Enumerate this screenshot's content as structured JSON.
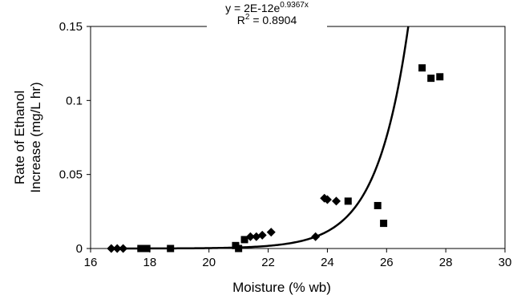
{
  "chart_data": {
    "type": "scatter",
    "title": "",
    "xlabel": "Moisture (% wb)",
    "ylabel_line1": "Rate of Ethanol",
    "ylabel_line2": "Increase (mg/L hr)",
    "xlim": [
      16,
      30
    ],
    "ylim": [
      0,
      0.15
    ],
    "x_ticks": [
      16,
      18,
      20,
      22,
      24,
      26,
      28,
      30
    ],
    "x_tick_labels": [
      "16",
      "18",
      "20",
      "22",
      "24",
      "26",
      "28",
      "30"
    ],
    "y_ticks": [
      0,
      0.05,
      0.1,
      0.15
    ],
    "y_tick_labels": [
      "0",
      "0.05",
      "0.1",
      "0.15"
    ],
    "grid": false,
    "legend": "none",
    "series": [
      {
        "marker": "diamond",
        "points": [
          {
            "x": 16.7,
            "y": 0.0
          },
          {
            "x": 16.9,
            "y": 0.0
          },
          {
            "x": 17.1,
            "y": 0.0
          },
          {
            "x": 21.4,
            "y": 0.008
          },
          {
            "x": 21.6,
            "y": 0.008
          },
          {
            "x": 21.8,
            "y": 0.009
          },
          {
            "x": 22.1,
            "y": 0.011
          },
          {
            "x": 23.6,
            "y": 0.008
          },
          {
            "x": 23.9,
            "y": 0.034
          },
          {
            "x": 24.0,
            "y": 0.033
          },
          {
            "x": 24.3,
            "y": 0.032
          }
        ]
      },
      {
        "marker": "square",
        "points": [
          {
            "x": 17.7,
            "y": 0.0
          },
          {
            "x": 17.9,
            "y": 0.0
          },
          {
            "x": 18.7,
            "y": 0.0
          },
          {
            "x": 20.9,
            "y": 0.002
          },
          {
            "x": 21.0,
            "y": 0.0
          },
          {
            "x": 21.2,
            "y": 0.006
          },
          {
            "x": 24.7,
            "y": 0.032
          },
          {
            "x": 25.7,
            "y": 0.029
          },
          {
            "x": 25.9,
            "y": 0.017
          },
          {
            "x": 27.2,
            "y": 0.122
          },
          {
            "x": 27.5,
            "y": 0.115
          },
          {
            "x": 27.8,
            "y": 0.116
          }
        ]
      }
    ],
    "trendline": {
      "type": "exponential",
      "a": 2e-12,
      "b": 0.9367,
      "equation_base": "y = 2E-12e",
      "equation_exponent": "0.9367x",
      "r2_prefix": "R",
      "r2_sup": "2",
      "r2_value": " = 0.8904"
    },
    "colors": {
      "marker": "#000000",
      "line": "#000000",
      "axis": "#000000"
    }
  }
}
